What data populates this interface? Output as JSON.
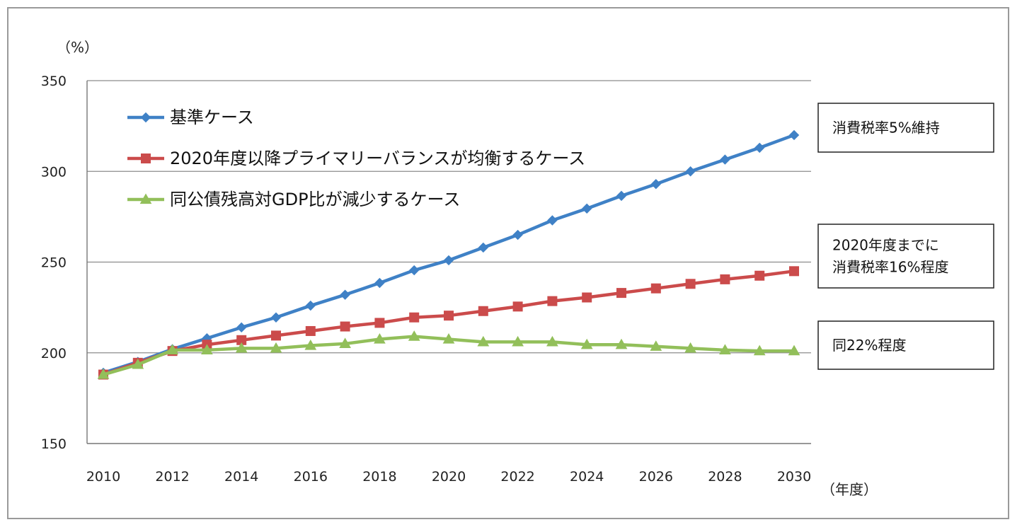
{
  "chart_data": {
    "type": "line",
    "title": "",
    "y_unit": "（%）",
    "x_unit": "（年度）",
    "ylim": [
      150,
      350
    ],
    "y_ticks": [
      150,
      200,
      250,
      300,
      350
    ],
    "x_ticks": [
      2010,
      2012,
      2014,
      2016,
      2018,
      2020,
      2022,
      2024,
      2026,
      2028,
      2030
    ],
    "grid": true,
    "legend_position": "top-left",
    "x": [
      2010,
      2011,
      2012,
      2013,
      2014,
      2015,
      2016,
      2017,
      2018,
      2019,
      2020,
      2021,
      2022,
      2023,
      2024,
      2025,
      2026,
      2027,
      2028,
      2029,
      2030
    ],
    "series": [
      {
        "name": "基準ケース",
        "color": "#3f81c6",
        "marker": "diamond",
        "values": [
          189,
          195,
          202,
          208,
          214,
          219.5,
          226,
          232,
          238.5,
          245.5,
          251,
          258,
          265,
          273,
          279.5,
          286.5,
          293,
          300,
          306.5,
          313,
          320
        ]
      },
      {
        "name": "2020年度以降プライマリーバランスが均衡するケース",
        "color": "#cb4b4b",
        "marker": "square",
        "values": [
          188,
          194.5,
          201,
          204.5,
          207,
          209.5,
          212,
          214.5,
          216.5,
          219.5,
          220.5,
          223,
          225.5,
          228.5,
          230.5,
          233,
          235.5,
          238,
          240.5,
          242.5,
          245
        ]
      },
      {
        "name": "同公債残高対GDP比が減少するケース",
        "color": "#92bf5a",
        "marker": "triangle",
        "values": [
          188,
          193.5,
          201.5,
          201.5,
          202.5,
          202.5,
          204,
          205,
          207.5,
          209,
          207.5,
          206,
          206,
          206,
          204.5,
          204.5,
          203.5,
          202.5,
          201.5,
          201,
          201
        ]
      }
    ],
    "annotations": [
      {
        "lines": [
          "消費税率5%維持"
        ]
      },
      {
        "lines": [
          "2020年度までに",
          "消費税率16%程度"
        ]
      },
      {
        "lines": [
          "同22%程度"
        ]
      }
    ]
  }
}
